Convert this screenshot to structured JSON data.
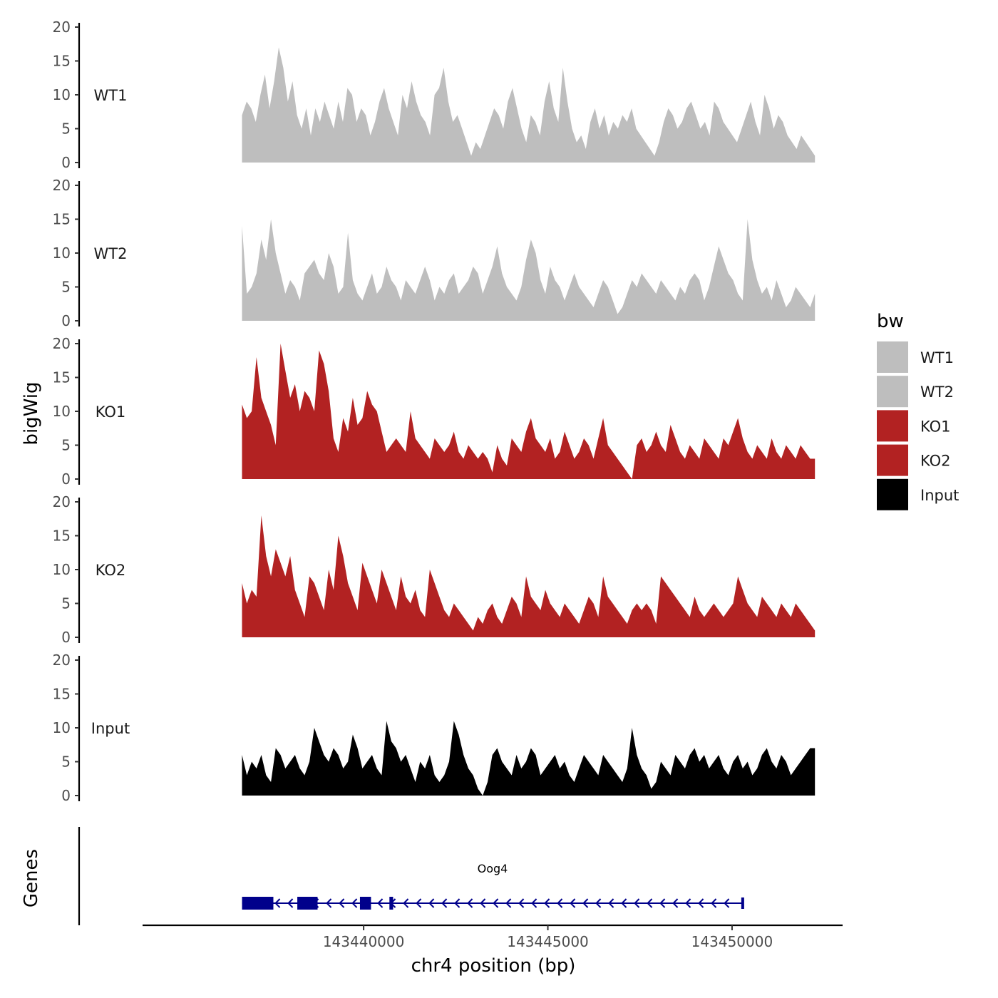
{
  "chart_data": {
    "type": "area",
    "ylabel": "bigWig",
    "xlabel": "chr4 position (bp)",
    "chromosome": "chr4",
    "xlim": [
      143434000,
      143453000
    ],
    "data_range": [
      143436700,
      143452250
    ],
    "x_ticks": [
      143440000,
      143445000,
      143450000
    ],
    "x_tick_labels": [
      "143440000",
      "143445000",
      "143450000"
    ],
    "ylim": [
      0,
      20
    ],
    "y_ticks": [
      0,
      5,
      10,
      15,
      20
    ],
    "y_tick_labels": [
      "0",
      "5",
      "10",
      "15",
      "20"
    ],
    "colors": {
      "WT1": "#bebebe",
      "WT2": "#bebebe",
      "KO1": "#b22222",
      "KO2": "#b22222",
      "Input": "#000000",
      "gene": "#00008b"
    },
    "series": [
      {
        "name": "WT1",
        "color": "#bebebe",
        "values": [
          7,
          9,
          8,
          6,
          10,
          13,
          8,
          12,
          17,
          14,
          9,
          12,
          7,
          5,
          8,
          4,
          8,
          6,
          9,
          7,
          5,
          9,
          6,
          11,
          10,
          6,
          8,
          7,
          4,
          6,
          9,
          11,
          8,
          6,
          4,
          10,
          8,
          12,
          9,
          7,
          6,
          4,
          10,
          11,
          14,
          9,
          6,
          7,
          5,
          3,
          1,
          3,
          2,
          4,
          6,
          8,
          7,
          5,
          9,
          11,
          8,
          5,
          3,
          7,
          6,
          4,
          9,
          12,
          8,
          6,
          14,
          9,
          5,
          3,
          4,
          2,
          6,
          8,
          5,
          7,
          4,
          6,
          5,
          7,
          6,
          8,
          5,
          4,
          3,
          2,
          1,
          3,
          6,
          8,
          7,
          5,
          6,
          8,
          9,
          7,
          5,
          6,
          4,
          9,
          8,
          6,
          5,
          4,
          3,
          5,
          7,
          9,
          6,
          4,
          10,
          8,
          5,
          7,
          6,
          4,
          3,
          2,
          4,
          3,
          2,
          1
        ]
      },
      {
        "name": "WT2",
        "color": "#bebebe",
        "values": [
          14,
          4,
          5,
          7,
          12,
          9,
          15,
          10,
          7,
          4,
          6,
          5,
          3,
          7,
          8,
          9,
          7,
          6,
          10,
          8,
          4,
          5,
          13,
          6,
          4,
          3,
          5,
          7,
          4,
          5,
          8,
          6,
          5,
          3,
          6,
          5,
          4,
          6,
          8,
          6,
          3,
          5,
          4,
          6,
          7,
          4,
          5,
          6,
          8,
          7,
          4,
          6,
          8,
          11,
          7,
          5,
          4,
          3,
          5,
          9,
          12,
          10,
          6,
          4,
          8,
          6,
          5,
          3,
          5,
          7,
          5,
          4,
          3,
          2,
          4,
          6,
          5,
          3,
          1,
          2,
          4,
          6,
          5,
          7,
          6,
          5,
          4,
          6,
          5,
          4,
          3,
          5,
          4,
          6,
          7,
          6,
          3,
          5,
          8,
          11,
          9,
          7,
          6,
          4,
          3,
          15,
          9,
          6,
          4,
          5,
          3,
          6,
          4,
          2,
          3,
          5,
          4,
          3,
          2,
          4
        ]
      },
      {
        "name": "KO1",
        "color": "#b22222",
        "values": [
          11,
          9,
          10,
          18,
          12,
          10,
          8,
          5,
          20,
          16,
          12,
          14,
          10,
          13,
          12,
          10,
          19,
          17,
          13,
          6,
          4,
          9,
          7,
          12,
          8,
          9,
          13,
          11,
          10,
          7,
          4,
          5,
          6,
          5,
          4,
          10,
          6,
          5,
          4,
          3,
          6,
          5,
          4,
          5,
          7,
          4,
          3,
          5,
          4,
          3,
          4,
          3,
          1,
          5,
          3,
          2,
          6,
          5,
          4,
          7,
          9,
          6,
          5,
          4,
          6,
          3,
          4,
          7,
          5,
          3,
          4,
          6,
          5,
          3,
          6,
          9,
          5,
          4,
          3,
          2,
          1,
          0,
          5,
          6,
          4,
          5,
          7,
          5,
          4,
          8,
          6,
          4,
          3,
          5,
          4,
          3,
          6,
          5,
          4,
          3,
          6,
          5,
          7,
          9,
          6,
          4,
          3,
          5,
          4,
          3,
          6,
          4,
          3,
          5,
          4,
          3,
          5,
          4,
          3,
          3
        ]
      },
      {
        "name": "KO2",
        "color": "#b22222",
        "values": [
          8,
          5,
          7,
          6,
          18,
          12,
          9,
          13,
          11,
          9,
          12,
          7,
          5,
          3,
          9,
          8,
          6,
          4,
          10,
          7,
          15,
          12,
          8,
          6,
          4,
          11,
          9,
          7,
          5,
          10,
          8,
          6,
          4,
          9,
          6,
          5,
          7,
          4,
          3,
          10,
          8,
          6,
          4,
          3,
          5,
          4,
          3,
          2,
          1,
          3,
          2,
          4,
          5,
          3,
          2,
          4,
          6,
          5,
          3,
          9,
          6,
          5,
          4,
          7,
          5,
          4,
          3,
          5,
          4,
          3,
          2,
          4,
          6,
          5,
          3,
          9,
          6,
          5,
          4,
          3,
          2,
          4,
          5,
          4,
          5,
          4,
          2,
          9,
          8,
          7,
          6,
          5,
          4,
          3,
          6,
          4,
          3,
          4,
          5,
          4,
          3,
          4,
          5,
          9,
          7,
          5,
          4,
          3,
          6,
          5,
          4,
          3,
          5,
          4,
          3,
          5,
          4,
          3,
          2,
          1
        ]
      },
      {
        "name": "Input",
        "color": "#000000",
        "values": [
          6,
          3,
          5,
          4,
          6,
          3,
          2,
          7,
          6,
          4,
          5,
          6,
          4,
          3,
          5,
          10,
          8,
          6,
          5,
          7,
          6,
          4,
          5,
          9,
          7,
          4,
          5,
          6,
          4,
          3,
          11,
          8,
          7,
          5,
          6,
          4,
          2,
          5,
          4,
          6,
          3,
          2,
          3,
          5,
          11,
          9,
          6,
          4,
          3,
          1,
          0,
          2,
          6,
          7,
          5,
          4,
          3,
          6,
          4,
          5,
          7,
          6,
          3,
          4,
          5,
          6,
          4,
          5,
          3,
          2,
          4,
          6,
          5,
          4,
          3,
          6,
          5,
          4,
          3,
          2,
          4,
          10,
          6,
          4,
          3,
          1,
          2,
          5,
          4,
          3,
          6,
          5,
          4,
          6,
          7,
          5,
          6,
          4,
          5,
          6,
          4,
          3,
          5,
          6,
          4,
          5,
          3,
          4,
          6,
          7,
          5,
          4,
          6,
          5,
          3,
          4,
          5,
          6,
          7,
          7
        ]
      }
    ],
    "genes_track": {
      "label": "Genes",
      "gene_name": "Oog4",
      "strand": "-",
      "gene_start": 143436700,
      "gene_end": 143450300,
      "exons": [
        [
          143436700,
          143437550
        ],
        [
          143438200,
          143438750
        ],
        [
          143439900,
          143440200
        ],
        [
          143440700,
          143440800
        ],
        [
          143450250,
          143450300
        ]
      ]
    },
    "legend": {
      "title": "bw",
      "position": "right",
      "entries": [
        {
          "label": "WT1",
          "color": "#bebebe"
        },
        {
          "label": "WT2",
          "color": "#bebebe"
        },
        {
          "label": "KO1",
          "color": "#b22222"
        },
        {
          "label": "KO2",
          "color": "#b22222"
        },
        {
          "label": "Input",
          "color": "#000000"
        }
      ]
    }
  }
}
